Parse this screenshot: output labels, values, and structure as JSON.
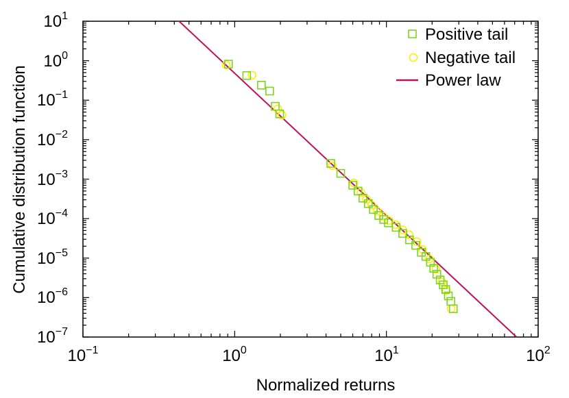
{
  "chart_data": {
    "type": "scatter",
    "xlabel": "Normalized returns",
    "ylabel": "Cumulative distribution function",
    "x_scale": "log",
    "y_scale": "log",
    "xlim": [
      0.1,
      100
    ],
    "ylim": [
      1e-07,
      10
    ],
    "x_ticks": [
      {
        "base": "10",
        "exp": "−1",
        "value": 0.1
      },
      {
        "base": "10",
        "exp": "0",
        "value": 1
      },
      {
        "base": "10",
        "exp": "1",
        "value": 10
      },
      {
        "base": "10",
        "exp": "2",
        "value": 100
      }
    ],
    "y_ticks": [
      {
        "base": "10",
        "exp": "1",
        "value": 10
      },
      {
        "base": "10",
        "exp": "0",
        "value": 1
      },
      {
        "base": "10",
        "exp": "−1",
        "value": 0.1
      },
      {
        "base": "10",
        "exp": "−2",
        "value": 0.01
      },
      {
        "base": "10",
        "exp": "−3",
        "value": 0.001
      },
      {
        "base": "10",
        "exp": "−4",
        "value": 0.0001
      },
      {
        "base": "10",
        "exp": "−5",
        "value": 1e-05
      },
      {
        "base": "10",
        "exp": "−6",
        "value": 1e-06
      },
      {
        "base": "10",
        "exp": "−7",
        "value": 1e-07
      }
    ],
    "legend_position": "top-right",
    "series": [
      {
        "name": "Positive tail",
        "marker": "square",
        "color": "#7fd320",
        "points": [
          [
            0.91,
            0.82
          ],
          [
            1.2,
            0.42
          ],
          [
            1.5,
            0.24
          ],
          [
            1.7,
            0.17
          ],
          [
            1.85,
            0.07
          ],
          [
            1.98,
            0.045
          ],
          [
            4.3,
            0.0025
          ],
          [
            5.0,
            0.0014
          ],
          [
            6.0,
            0.0007
          ],
          [
            6.5,
            0.0005
          ],
          [
            7.0,
            0.00033
          ],
          [
            7.6,
            0.00024
          ],
          [
            8.2,
            0.00017
          ],
          [
            8.9,
            0.00012
          ],
          [
            9.6,
            9.5e-05
          ],
          [
            10.3,
            7.8e-05
          ],
          [
            11.6,
            6e-05
          ],
          [
            12.8,
            4.2e-05
          ],
          [
            14.2,
            2.9e-05
          ],
          [
            15.6,
            2.1e-05
          ],
          [
            17.0,
            1.4e-05
          ],
          [
            18.2,
            1.1e-05
          ],
          [
            19.5,
            7.8e-06
          ],
          [
            20.5,
            5.5e-06
          ],
          [
            21.5,
            3.9e-06
          ],
          [
            22.6,
            2.8e-06
          ],
          [
            23.7,
            2.1e-06
          ],
          [
            24.6,
            1.6e-06
          ],
          [
            25.6,
            1.1e-06
          ],
          [
            26.6,
            8e-07
          ],
          [
            27.6,
            5.2e-07
          ]
        ]
      },
      {
        "name": "Negative tail",
        "marker": "circle",
        "color": "#ffee00",
        "points": [
          [
            0.88,
            0.78
          ],
          [
            1.3,
            0.43
          ],
          [
            1.92,
            0.06
          ],
          [
            2.05,
            0.042
          ],
          [
            4.4,
            0.0022
          ],
          [
            6.1,
            0.0008
          ],
          [
            6.8,
            0.00046
          ],
          [
            7.4,
            0.00031
          ],
          [
            8.0,
            0.00022
          ],
          [
            8.7,
            0.000155
          ],
          [
            9.5,
            0.000115
          ],
          [
            10.4,
            8.9e-05
          ],
          [
            11.5,
            7e-05
          ],
          [
            12.8,
            5.2e-05
          ],
          [
            14.1,
            3.9e-05
          ],
          [
            15.9,
            2.6e-05
          ],
          [
            17.3,
            1.65e-05
          ],
          [
            19.2,
            9.5e-06
          ],
          [
            21.2,
            5.2e-06
          ],
          [
            23.2,
            2.5e-06
          ],
          [
            24.8,
            1.5e-06
          ],
          [
            26.7,
            5.2e-07
          ]
        ]
      },
      {
        "name": "Power law",
        "type": "line",
        "color": "#c0105a",
        "x": [
          0.4,
          72
        ],
        "y": [
          13,
          1e-07
        ]
      }
    ]
  }
}
